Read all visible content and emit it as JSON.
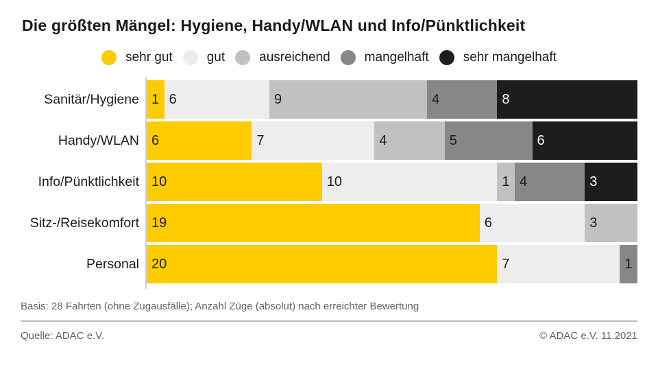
{
  "title": "Die größten Mängel: Hygiene, Handy/WLAN und Info/Pünktlichkeit",
  "chart_data": {
    "type": "bar",
    "subtype": "horizontal-stacked",
    "title": "Die größten Mängel: Hygiene, Handy/WLAN und Info/Pünktlichkeit",
    "categories": [
      "Sanitär/Hygiene",
      "Handy/WLAN",
      "Info/Pünktlichkeit",
      "Sitz-/Reisekomfort",
      "Personal"
    ],
    "series": [
      {
        "name": "sehr gut",
        "color": "#FFCC00",
        "text_color": "#1D1D1B",
        "values": [
          1,
          6,
          10,
          19,
          20
        ]
      },
      {
        "name": "gut",
        "color": "#EDEDED",
        "text_color": "#1D1D1B",
        "values": [
          6,
          7,
          10,
          6,
          7
        ]
      },
      {
        "name": "ausreichend",
        "color": "#C1C1C1",
        "text_color": "#1D1D1B",
        "values": [
          9,
          4,
          1,
          3,
          0
        ]
      },
      {
        "name": "mangelhaft",
        "color": "#878787",
        "text_color": "#1D1D1B",
        "values": [
          4,
          5,
          4,
          0,
          1
        ]
      },
      {
        "name": "sehr mangelhaft",
        "color": "#1D1D1B",
        "text_color": "#FFFFFF",
        "values": [
          8,
          6,
          3,
          0,
          0
        ]
      }
    ],
    "row_total": 28,
    "xlim": [
      0,
      28
    ],
    "value_labels": "inside-start",
    "legend_position": "top-center",
    "grid": false
  },
  "footer": {
    "basis": "Basis: 28 Fahrten (ohne Zugausfälle); Anzahl Züge (absolut) nach erreichter Bewertung",
    "source": "Quelle: ADAC e.V.",
    "copyright": "© ADAC e.V. 11.2021"
  }
}
